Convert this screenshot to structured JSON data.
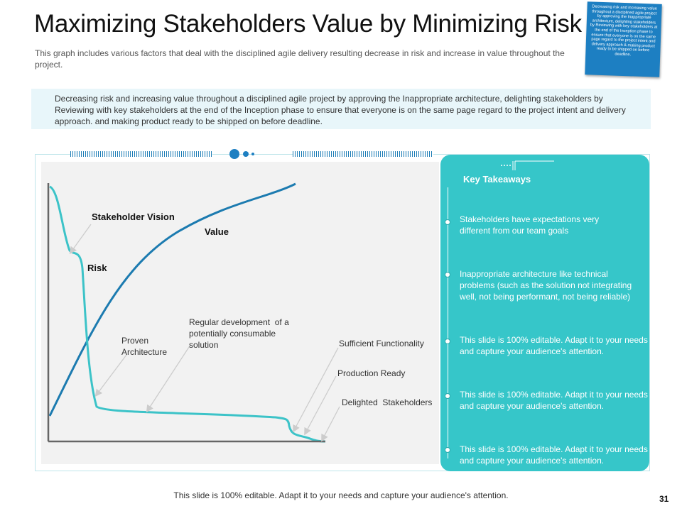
{
  "header": {
    "title": "Maximizing Stakeholders Value by Minimizing Risk",
    "subtitle": "This graph includes various factors that deal with the disciplined agile delivery resulting decrease in risk and increase in value throughout the project."
  },
  "sticky_note": {
    "text": "Decreasing risk and increasing value throughout a disciplined agile project by approving the Inappropriate architecture, delighting stakeholders by Reviewing with key stakeholders at the end of the Inception phase to ensure that everyone is on the same page regard to the project intent and delivery approach & making product ready to be shipped on before deadline."
  },
  "summary": {
    "text": "Decreasing risk and increasing value throughout a disciplined agile project by approving the Inappropriate architecture, delighting stakeholders by Reviewing with key stakeholders at the end of the Inception phase to ensure that everyone is on the same page regard to the project intent and delivery approach. and making product ready to be shipped on before deadline."
  },
  "diagram": {
    "curve_labels": {
      "stakeholder_vision": "Stakeholder Vision",
      "value": "Value",
      "risk": "Risk"
    },
    "annotations": {
      "proven_architecture": "Proven\nArchitecture",
      "regular_development": "Regular development  of a\npotentially consumable\nsolution",
      "sufficient_functionality": "Sufficient Functionality",
      "production_ready": "Production Ready",
      "delighted_stakeholders": "Delighted  Stakeholders"
    },
    "colors": {
      "value_curve": "#1c7bb0",
      "risk_curve": "#3cc3c8",
      "axis": "#666666",
      "pointer": "#cccccc"
    }
  },
  "key_takeaways": {
    "title": "Key Takeaways",
    "items": [
      "Stakeholders have expectations very different from our team goals",
      "Inappropriate  architecture like technical problems (such as the solution not integrating well, not being performant, not being reliable)",
      "This slide is 100% editable. Adapt it to your needs and capture your audience's attention.",
      "This slide is 100% editable. Adapt it to your needs and capture your audience's attention.",
      "This slide is 100% editable. Adapt it to your needs and capture your audience's attention."
    ],
    "color": "#36c6c9"
  },
  "footer": {
    "text": "This slide is 100% editable. Adapt it to your needs and capture your audience's attention.",
    "page_number": "31"
  }
}
